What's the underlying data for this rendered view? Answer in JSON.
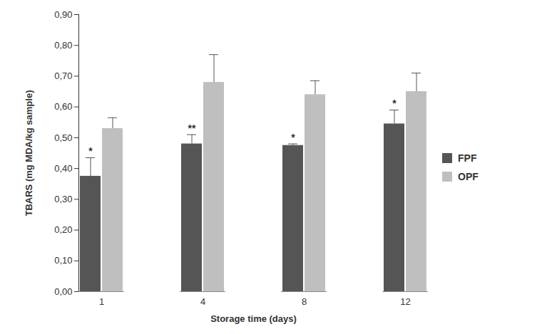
{
  "chart_data": {
    "type": "bar",
    "x_label": "Storage time (days)",
    "y_label": "TBARS (mg MDA/kg sample)",
    "categories": [
      "1",
      "4",
      "8",
      "12"
    ],
    "series": [
      {
        "name": "FPF",
        "color": "#555555",
        "values": [
          0.375,
          0.48,
          0.475,
          0.545
        ],
        "error": [
          0.06,
          0.03,
          0.005,
          0.045
        ],
        "significance": [
          "*",
          "**",
          "*",
          "*"
        ]
      },
      {
        "name": "OPF",
        "color": "#bfbfbf",
        "values": [
          0.53,
          0.68,
          0.64,
          0.65
        ],
        "error": [
          0.035,
          0.09,
          0.045,
          0.06
        ]
      }
    ],
    "ylim": [
      0,
      0.9
    ],
    "yticks": [
      {
        "value": 0,
        "label": "0,00"
      },
      {
        "value": 0.1,
        "label": "0,10"
      },
      {
        "value": 0.2,
        "label": "0,20"
      },
      {
        "value": 0.3,
        "label": "0,30"
      },
      {
        "value": 0.4,
        "label": "0,40"
      },
      {
        "value": 0.5,
        "label": "0,50"
      },
      {
        "value": 0.6,
        "label": "0,60"
      },
      {
        "value": 0.7,
        "label": "0,70"
      },
      {
        "value": 0.8,
        "label": "0,80"
      },
      {
        "value": 0.9,
        "label": "0,90"
      }
    ],
    "grid": false,
    "legend": "right"
  }
}
